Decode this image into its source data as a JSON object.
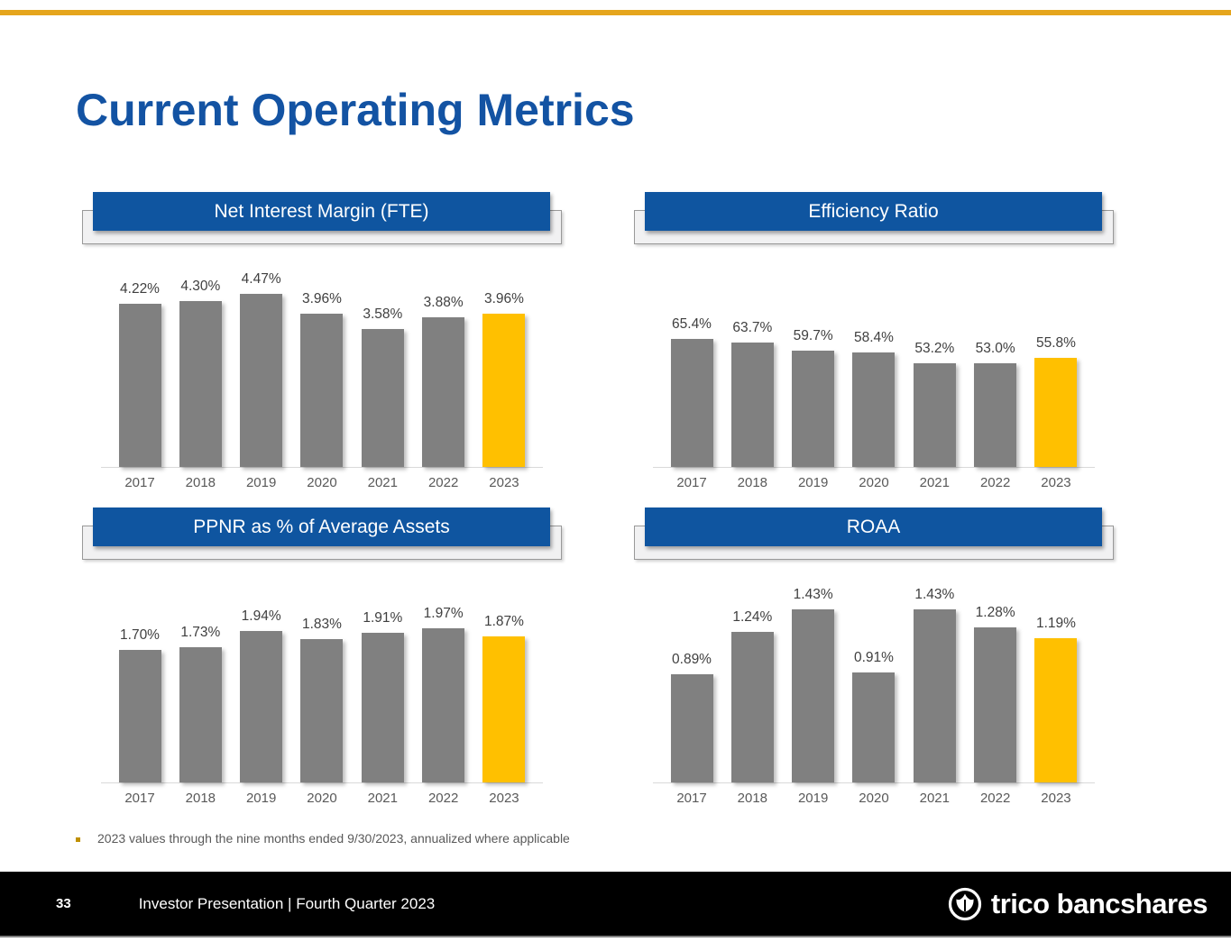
{
  "slide": {
    "title": "Current Operating Metrics",
    "footnote": "2023 values through the nine months ended 9/30/2023, annualized where applicable",
    "footer": {
      "page_number": "33",
      "text": "Investor Presentation | Fourth Quarter 2023",
      "logo_text": "trico bancshares"
    },
    "colors": {
      "accent_gold": "#FFC000",
      "bar_gray": "#808080",
      "heading_blue": "#1353A3",
      "title_box_blue": "#0F55A0",
      "top_rule_gold": "#E5A51D",
      "footer_black": "#000000",
      "footnote_bullet_gold": "#BF9000"
    }
  },
  "chart_data": [
    {
      "type": "bar",
      "title": "Net Interest Margin (FTE)",
      "categories": [
        "2017",
        "2018",
        "2019",
        "2020",
        "2021",
        "2022",
        "2023"
      ],
      "values": [
        4.22,
        4.3,
        4.47,
        3.96,
        3.58,
        3.88,
        3.96
      ],
      "labels": [
        "4.22%",
        "4.30%",
        "4.47%",
        "3.96%",
        "3.58%",
        "3.88%",
        "3.96%"
      ],
      "xlabel": "",
      "ylabel": "",
      "ylim": [
        0,
        4.55
      ],
      "grid": false,
      "legend": "none",
      "bar_color": "#808080",
      "highlight_color": "#FFC000",
      "highlight_last": true
    },
    {
      "type": "bar",
      "title": "Efficiency Ratio",
      "categories": [
        "2017",
        "2018",
        "2019",
        "2020",
        "2021",
        "2022",
        "2023"
      ],
      "values": [
        65.4,
        63.7,
        59.7,
        58.4,
        53.2,
        53.0,
        55.8
      ],
      "labels": [
        "65.4%",
        "63.7%",
        "59.7%",
        "58.4%",
        "53.2%",
        "53.0%",
        "55.8%"
      ],
      "xlabel": "",
      "ylabel": "",
      "ylim": [
        0,
        90
      ],
      "grid": false,
      "legend": "none",
      "bar_color": "#808080",
      "highlight_color": "#FFC000",
      "highlight_last": true
    },
    {
      "type": "bar",
      "title": "PPNR as % of Average Assets",
      "categories": [
        "2017",
        "2018",
        "2019",
        "2020",
        "2021",
        "2022",
        "2023"
      ],
      "values": [
        1.7,
        1.73,
        1.94,
        1.83,
        1.91,
        1.97,
        1.87
      ],
      "labels": [
        "1.70%",
        "1.73%",
        "1.94%",
        "1.83%",
        "1.91%",
        "1.97%",
        "1.87%"
      ],
      "xlabel": "",
      "ylabel": "",
      "ylim": [
        0,
        2.25
      ],
      "grid": false,
      "legend": "none",
      "bar_color": "#808080",
      "highlight_color": "#FFC000",
      "highlight_last": true
    },
    {
      "type": "bar",
      "title": "ROAA",
      "categories": [
        "2017",
        "2018",
        "2019",
        "2020",
        "2021",
        "2022",
        "2023"
      ],
      "values": [
        0.89,
        1.24,
        1.43,
        0.91,
        1.43,
        1.28,
        1.19
      ],
      "labels": [
        "0.89%",
        "1.24%",
        "1.43%",
        "0.91%",
        "1.43%",
        "1.28%",
        "1.19%"
      ],
      "xlabel": "",
      "ylabel": "",
      "ylim": [
        0,
        1.45
      ],
      "grid": false,
      "legend": "none",
      "bar_color": "#808080",
      "highlight_color": "#FFC000",
      "highlight_last": true
    }
  ]
}
